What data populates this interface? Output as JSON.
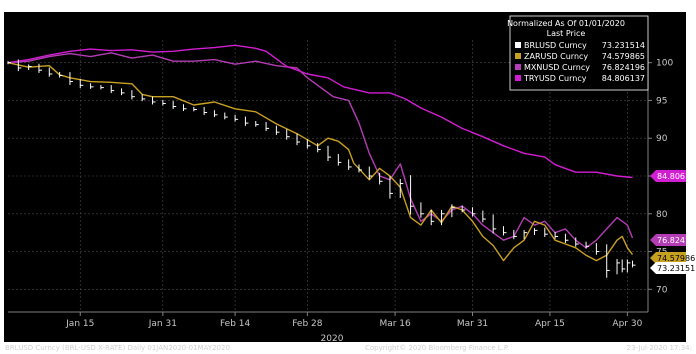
{
  "chart_data": {
    "type": "line",
    "legend": {
      "title_line1": "Normalized As Of 01/01/2020",
      "title_line2": "Last Price",
      "placement": "top-right"
    },
    "x_ticks": [
      {
        "label": "Jan 15",
        "day": 14
      },
      {
        "label": "Jan 31",
        "day": 30
      },
      {
        "label": "Feb 14",
        "day": 44
      },
      {
        "label": "Feb 28",
        "day": 58
      },
      {
        "label": "Mar 16",
        "day": 75
      },
      {
        "label": "Mar 31",
        "day": 90
      },
      {
        "label": "Apr 15",
        "day": 105
      },
      {
        "label": "Apr 30",
        "day": 120
      }
    ],
    "x_year_label": "2020",
    "x_range_days": [
      0,
      124
    ],
    "ylim": [
      67,
      103
    ],
    "y_ticks": [
      70,
      75,
      80,
      85,
      90,
      95,
      100
    ],
    "grid": true,
    "series": [
      {
        "name": "MXNUSD Curncy",
        "last_price": "76.824196",
        "tag": "76.82419",
        "color": "#b43cb4",
        "style": "line",
        "points": [
          [
            0,
            100
          ],
          [
            4,
            100.2
          ],
          [
            8,
            100.8
          ],
          [
            12,
            101.2
          ],
          [
            16,
            100.8
          ],
          [
            20,
            101.3
          ],
          [
            24,
            100.6
          ],
          [
            28,
            101
          ],
          [
            32,
            100.2
          ],
          [
            36,
            100.2
          ],
          [
            40,
            100.4
          ],
          [
            44,
            99.8
          ],
          [
            48,
            100.2
          ],
          [
            52,
            99.6
          ],
          [
            56,
            99.3
          ],
          [
            58,
            98
          ],
          [
            60,
            97
          ],
          [
            63,
            95.5
          ],
          [
            66,
            95
          ],
          [
            68,
            92
          ],
          [
            70,
            88
          ],
          [
            72,
            85
          ],
          [
            74,
            84.5
          ],
          [
            76,
            86.6
          ],
          [
            78,
            82
          ],
          [
            80,
            79
          ],
          [
            82,
            80
          ],
          [
            84,
            79
          ],
          [
            86,
            80.5
          ],
          [
            88,
            81
          ],
          [
            90,
            80
          ],
          [
            92,
            78.5
          ],
          [
            94,
            77.5
          ],
          [
            96,
            76.5
          ],
          [
            98,
            77
          ],
          [
            100,
            79.5
          ],
          [
            102,
            78.5
          ],
          [
            104,
            79
          ],
          [
            106,
            77.5
          ],
          [
            108,
            78
          ],
          [
            110,
            76.5
          ],
          [
            112,
            75.5
          ],
          [
            114,
            76.5
          ],
          [
            116,
            78
          ],
          [
            118,
            79.5
          ],
          [
            120,
            78.5
          ],
          [
            121,
            76.8
          ]
        ]
      },
      {
        "name": "TRYUSD Curncy",
        "last_price": "84.806137",
        "tag": "84.80613",
        "color": "#d21ed2",
        "style": "line",
        "points": [
          [
            0,
            100
          ],
          [
            4,
            100.4
          ],
          [
            8,
            101
          ],
          [
            12,
            101.5
          ],
          [
            16,
            101.8
          ],
          [
            20,
            101.6
          ],
          [
            24,
            101.7
          ],
          [
            28,
            101.4
          ],
          [
            32,
            101.5
          ],
          [
            36,
            101.8
          ],
          [
            40,
            102
          ],
          [
            44,
            102.3
          ],
          [
            48,
            101.9
          ],
          [
            50,
            101.5
          ],
          [
            54,
            99.5
          ],
          [
            58,
            98.5
          ],
          [
            62,
            98
          ],
          [
            65,
            96.8
          ],
          [
            70,
            96
          ],
          [
            74,
            96
          ],
          [
            77,
            95.2
          ],
          [
            80,
            94
          ],
          [
            84,
            92.8
          ],
          [
            88,
            91.3
          ],
          [
            92,
            90.2
          ],
          [
            96,
            89
          ],
          [
            100,
            88
          ],
          [
            104,
            87.5
          ],
          [
            106,
            86.5
          ],
          [
            110,
            85.5
          ],
          [
            114,
            85.5
          ],
          [
            118,
            85
          ],
          [
            121,
            84.8
          ]
        ]
      },
      {
        "name": "ZARUSD Curncy",
        "last_price": "74.579865",
        "tag": "74.57986",
        "color": "#c8a020",
        "style": "line",
        "points": [
          [
            0,
            100
          ],
          [
            4,
            99.4
          ],
          [
            8,
            99.6
          ],
          [
            10,
            98.4
          ],
          [
            12,
            98
          ],
          [
            16,
            97.5
          ],
          [
            20,
            97.4
          ],
          [
            24,
            97.2
          ],
          [
            26,
            95.8
          ],
          [
            28,
            95.5
          ],
          [
            32,
            95.5
          ],
          [
            36,
            94.4
          ],
          [
            40,
            94.8
          ],
          [
            44,
            93.9
          ],
          [
            48,
            93.5
          ],
          [
            52,
            91.9
          ],
          [
            56,
            90.6
          ],
          [
            58,
            89.8
          ],
          [
            60,
            89
          ],
          [
            62,
            90
          ],
          [
            64,
            89.6
          ],
          [
            66,
            88.5
          ],
          [
            67,
            86.7
          ],
          [
            70,
            84.5
          ],
          [
            72,
            86
          ],
          [
            74,
            85
          ],
          [
            76,
            83.5
          ],
          [
            78,
            79.5
          ],
          [
            80,
            78.5
          ],
          [
            82,
            80.5
          ],
          [
            84,
            78.8
          ],
          [
            86,
            81
          ],
          [
            88,
            80.5
          ],
          [
            90,
            79
          ],
          [
            92,
            77
          ],
          [
            94,
            75.8
          ],
          [
            96,
            73.8
          ],
          [
            98,
            75.5
          ],
          [
            100,
            76.5
          ],
          [
            102,
            79
          ],
          [
            104,
            78.5
          ],
          [
            106,
            76.5
          ],
          [
            108,
            76
          ],
          [
            110,
            75.5
          ],
          [
            112,
            74.5
          ],
          [
            114,
            73.8
          ],
          [
            116,
            74.5
          ],
          [
            118,
            76.5
          ],
          [
            119,
            77
          ],
          [
            120,
            75.5
          ],
          [
            121,
            74.6
          ]
        ]
      },
      {
        "name": "BRLUSD Curncy",
        "last_price": "73.231514",
        "tag": "73.23151",
        "color": "#ffffff",
        "style": "bars",
        "points": [
          [
            0,
            100
          ],
          [
            2,
            99.3
          ],
          [
            4,
            99.5
          ],
          [
            6,
            99
          ],
          [
            8,
            98.5
          ],
          [
            10,
            98.3
          ],
          [
            12,
            97.5
          ],
          [
            14,
            97
          ],
          [
            16,
            96.8
          ],
          [
            18,
            96.7
          ],
          [
            20,
            96.3
          ],
          [
            22,
            96
          ],
          [
            24,
            95.5
          ],
          [
            26,
            95.2
          ],
          [
            28,
            94.8
          ],
          [
            30,
            94.6
          ],
          [
            32,
            94.2
          ],
          [
            34,
            93.9
          ],
          [
            36,
            93.8
          ],
          [
            38,
            93.4
          ],
          [
            40,
            93.1
          ],
          [
            42,
            92.8
          ],
          [
            44,
            92.5
          ],
          [
            46,
            92
          ],
          [
            48,
            91.8
          ],
          [
            50,
            91.3
          ],
          [
            52,
            90.8
          ],
          [
            54,
            90.2
          ],
          [
            56,
            89.5
          ],
          [
            58,
            89
          ],
          [
            60,
            88.5
          ],
          [
            62,
            87.5
          ],
          [
            64,
            86.8
          ],
          [
            66,
            86.2
          ],
          [
            68,
            85.8
          ],
          [
            70,
            85
          ],
          [
            72,
            84.3
          ],
          [
            74,
            82.7
          ],
          [
            76,
            84
          ],
          [
            78,
            81
          ],
          [
            80,
            80
          ],
          [
            82,
            79
          ],
          [
            84,
            80
          ],
          [
            86,
            80.8
          ],
          [
            88,
            80.5
          ],
          [
            90,
            80
          ],
          [
            92,
            79.3
          ],
          [
            94,
            78
          ],
          [
            96,
            77.5
          ],
          [
            98,
            77
          ],
          [
            100,
            77.5
          ],
          [
            102,
            77.8
          ],
          [
            104,
            77.3
          ],
          [
            106,
            77
          ],
          [
            108,
            76.5
          ],
          [
            110,
            76
          ],
          [
            112,
            75.7
          ],
          [
            114,
            75
          ],
          [
            116,
            72.5
          ],
          [
            118,
            73.5
          ],
          [
            119,
            72.7
          ],
          [
            120,
            73.5
          ],
          [
            121,
            73.2
          ]
        ]
      }
    ]
  },
  "footer": {
    "left": "BRLUSD Curncy (BRL-USD X-RATE)  Daily 01JAN2020-01MAY2020",
    "center": "Copyright© 2020 Bloomberg Finance L.P.",
    "right": "23-Jul-2020 17:34:"
  }
}
